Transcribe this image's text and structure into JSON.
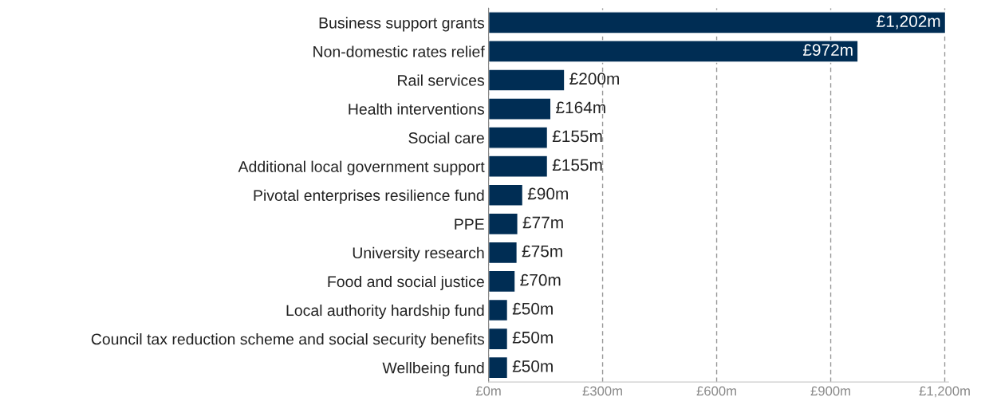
{
  "chart_data": {
    "type": "bar",
    "orientation": "horizontal",
    "categories": [
      "Business support grants",
      "Non-domestic rates relief",
      "Rail services",
      "Health interventions",
      "Social care",
      "Additional local government support",
      "Pivotal enterprises resilience fund",
      "PPE",
      "University research",
      "Food and social justice",
      "Local authority hardship fund",
      "Council tax reduction scheme and social security benefits",
      "Wellbeing fund"
    ],
    "values": [
      1202,
      972,
      200,
      164,
      155,
      155,
      90,
      77,
      75,
      70,
      50,
      50,
      50
    ],
    "value_labels": [
      "£1,202m",
      "£972m",
      "£200m",
      "£164m",
      "£155m",
      "£155m",
      "£90m",
      "£77m",
      "£75m",
      "£70m",
      "£50m",
      "£50m",
      "£50m"
    ],
    "color": "#002d54",
    "xlim": [
      0,
      1210
    ],
    "xticks": [
      {
        "value": 0,
        "label": "£0m"
      },
      {
        "value": 300,
        "label": "£300m"
      },
      {
        "value": 600,
        "label": "£600m"
      },
      {
        "value": 900,
        "label": "£900m"
      },
      {
        "value": 1200,
        "label": "£1,200m"
      }
    ],
    "grid": "x"
  }
}
